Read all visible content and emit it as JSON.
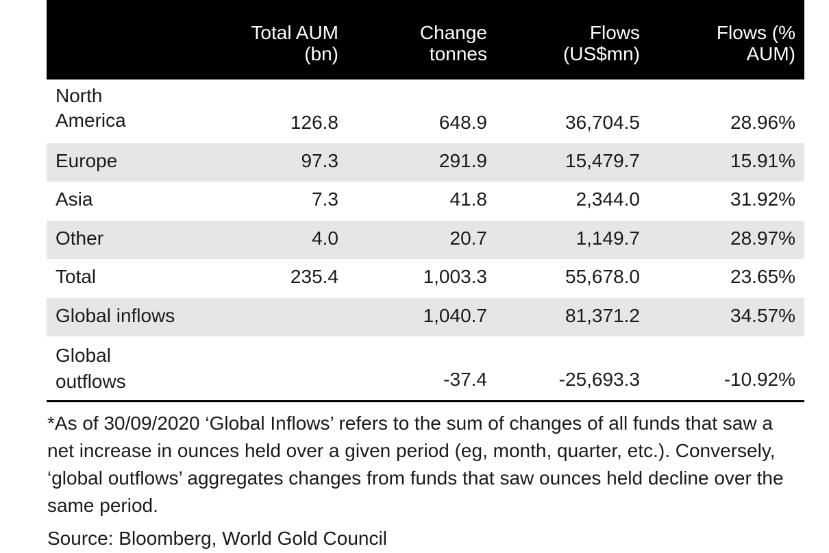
{
  "table": {
    "headers": [
      "Total AUM\n(bn)",
      "Change\ntonnes",
      "Flows\n(US$mn)",
      "Flows (%\nAUM)"
    ],
    "rows": [
      {
        "region": "North\nAmerica",
        "aum": "126.8",
        "change": "648.9",
        "flows": "36,704.5",
        "pct": "28.96%"
      },
      {
        "region": "Europe",
        "aum": "97.3",
        "change": "291.9",
        "flows": "15,479.7",
        "pct": "15.91%"
      },
      {
        "region": "Asia",
        "aum": "7.3",
        "change": "41.8",
        "flows": "2,344.0",
        "pct": "31.92%"
      },
      {
        "region": "Other",
        "aum": "4.0",
        "change": "20.7",
        "flows": "1,149.7",
        "pct": "28.97%"
      },
      {
        "region": "Total",
        "aum": "235.4",
        "change": "1,003.3",
        "flows": "55,678.0",
        "pct": "23.65%"
      },
      {
        "region": "Global inflows",
        "aum": "",
        "change": "1,040.7",
        "flows": "81,371.2",
        "pct": "34.57%"
      },
      {
        "region": "Global\noutflows",
        "aum": "",
        "change": "-37.4",
        "flows": "-25,693.3",
        "pct": "-10.92%"
      }
    ]
  },
  "footnote": "*As of 30/09/2020 ‘Global Inflows’ refers to the sum of changes of all funds that saw a net increase in ounces held over a given period (eg, month, quarter, etc.). Conversely, ‘global outflows’ aggregates changes from funds that saw ounces held decline over the same period.",
  "source": "Source: Bloomberg, World Gold Council",
  "colors": {
    "header_bg": "#000000",
    "shade": "#e6e6e6"
  }
}
